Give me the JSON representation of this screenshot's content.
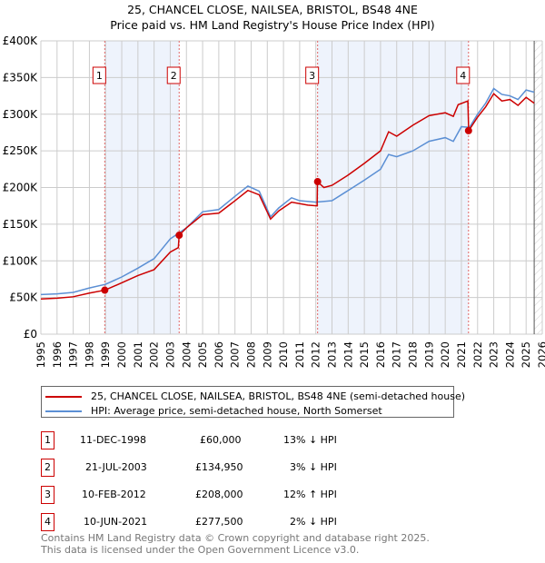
{
  "title": "25, CHANCEL CLOSE, NAILSEA, BRISTOL, BS48 4NE",
  "subtitle": "Price paid vs. HM Land Registry's House Price Index (HPI)",
  "chart_data": {
    "type": "line",
    "title": "25, CHANCEL CLOSE, NAILSEA, BRISTOL, BS48 4NE",
    "subtitle": "Price paid vs. HM Land Registry's House Price Index (HPI)",
    "xlim": [
      1995,
      2026
    ],
    "ylim": [
      0,
      400000
    ],
    "yticks": [
      0,
      50000,
      100000,
      150000,
      200000,
      250000,
      300000,
      350000,
      400000
    ],
    "ytick_labels": [
      "£0",
      "£50K",
      "£100K",
      "£150K",
      "£200K",
      "£250K",
      "£300K",
      "£350K",
      "£400K"
    ],
    "xticks": [
      "1995",
      "1996",
      "1997",
      "1998",
      "1999",
      "2000",
      "2001",
      "2002",
      "2003",
      "2004",
      "2005",
      "2006",
      "2007",
      "2008",
      "2009",
      "2010",
      "2011",
      "2012",
      "2013",
      "2014",
      "2015",
      "2016",
      "2017",
      "2018",
      "2019",
      "2020",
      "2021",
      "2022",
      "2023",
      "2024",
      "2025",
      "2026"
    ],
    "grid": true,
    "colors": {
      "property": "#cc0000",
      "hpi": "#5b8fd4",
      "band": "#eef3fc"
    },
    "series": [
      {
        "name": "25, CHANCEL CLOSE, NAILSEA, BRISTOL, BS48 4NE (semi-detached house)",
        "x": [
          1995,
          1996,
          1997,
          1998,
          1998.95,
          2000,
          2001,
          2002,
          2003,
          2003.5,
          2003.55,
          2004,
          2005,
          2006,
          2007,
          2007.8,
          2008.5,
          2009.2,
          2009.7,
          2010.5,
          2011.5,
          2012.08,
          2012.1,
          2012.5,
          2013,
          2014,
          2015,
          2016,
          2016.5,
          2017,
          2018,
          2019,
          2020,
          2020.5,
          2020.8,
          2021.4,
          2021.45,
          2022,
          2022.5,
          2023,
          2023.5,
          2024,
          2024.5,
          2025,
          2025.5
        ],
        "y": [
          48000,
          49000,
          51000,
          56000,
          60000,
          70000,
          80000,
          88000,
          112000,
          118000,
          134950,
          145000,
          163000,
          165000,
          182000,
          196000,
          190000,
          157000,
          168000,
          180000,
          176000,
          175000,
          208000,
          200000,
          203000,
          217000,
          233000,
          250000,
          276000,
          270000,
          285000,
          298000,
          302000,
          297000,
          313000,
          318000,
          277500,
          296000,
          310000,
          328000,
          318000,
          320000,
          312000,
          323000,
          315000
        ]
      },
      {
        "name": "HPI: Average price, semi-detached house, North Somerset",
        "x": [
          1995,
          1996,
          1997,
          1998,
          1999,
          2000,
          2001,
          2002,
          2003,
          2004,
          2005,
          2006,
          2007,
          2007.8,
          2008.5,
          2009.2,
          2009.7,
          2010.5,
          2011,
          2012,
          2013,
          2014,
          2015,
          2016,
          2016.5,
          2017,
          2018,
          2019,
          2020,
          2020.5,
          2021,
          2021.5,
          2022,
          2022.5,
          2023,
          2023.5,
          2024,
          2024.5,
          2025,
          2025.5
        ],
        "y": [
          54000,
          55000,
          57000,
          63000,
          68000,
          78000,
          90000,
          103000,
          130000,
          145000,
          167000,
          170000,
          188000,
          202000,
          195000,
          160000,
          172000,
          186000,
          182000,
          180000,
          182000,
          196000,
          210000,
          225000,
          245000,
          242000,
          250000,
          263000,
          268000,
          263000,
          283000,
          282000,
          300000,
          315000,
          335000,
          327000,
          325000,
          320000,
          333000,
          330000
        ]
      }
    ],
    "sales": [
      {
        "n": "1",
        "x": 1998.95,
        "y": 60000,
        "date": "11-DEC-1998",
        "price": "£60,000",
        "hpi": "13% ↓ HPI"
      },
      {
        "n": "2",
        "x": 2003.55,
        "y": 134950,
        "date": "21-JUL-2003",
        "price": "£134,950",
        "hpi": "3% ↓ HPI"
      },
      {
        "n": "3",
        "x": 2012.11,
        "y": 208000,
        "date": "10-FEB-2012",
        "price": "£208,000",
        "hpi": "12% ↑ HPI"
      },
      {
        "n": "4",
        "x": 2021.44,
        "y": 277500,
        "date": "10-JUN-2021",
        "price": "£277,500",
        "hpi": "2% ↓ HPI"
      }
    ],
    "forecast_from": 2025.5
  },
  "legend": {
    "property": "25, CHANCEL CLOSE, NAILSEA, BRISTOL, BS48 4NE (semi-detached house)",
    "hpi": "HPI: Average price, semi-detached house, North Somerset"
  },
  "footer": [
    "Contains HM Land Registry data © Crown copyright and database right 2025.",
    "This data is licensed under the Open Government Licence v3.0."
  ]
}
